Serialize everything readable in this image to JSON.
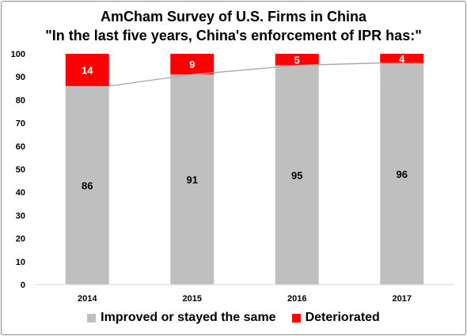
{
  "title_line1": "AmCham Survey of U.S. Firms in China",
  "title_line2": "\"In the last five years, China's enforcement of IPR has:\"",
  "chart_data": {
    "type": "bar",
    "stacked": true,
    "categories": [
      "2014",
      "2015",
      "2016",
      "2017"
    ],
    "series": [
      {
        "name": "Improved or stayed the same",
        "values": [
          86,
          91,
          95,
          96
        ],
        "color": "#bfbfbf",
        "label_color": "#000000"
      },
      {
        "name": "Deteriorated",
        "values": [
          14,
          9,
          5,
          4
        ],
        "color": "#ff0000",
        "label_color": "#ffffff"
      }
    ],
    "ylim": [
      0,
      100
    ],
    "yticks": [
      0,
      10,
      20,
      30,
      40,
      50,
      60,
      70,
      80,
      90,
      100
    ],
    "grid": false,
    "trend_line": {
      "series": "Improved or stayed the same",
      "color": "#a6a6a6"
    },
    "legend_position": "bottom"
  }
}
